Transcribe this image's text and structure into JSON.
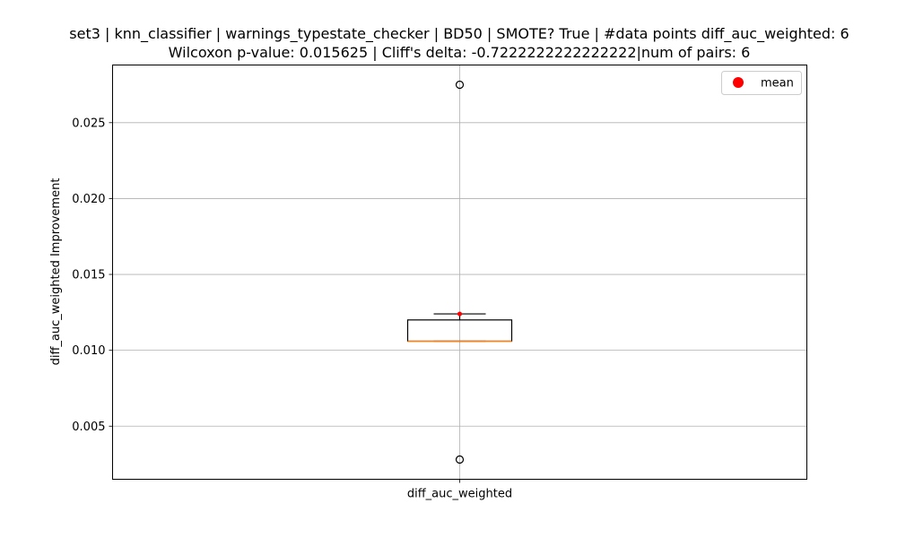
{
  "chart_data": {
    "type": "box",
    "title_line1": "set3 | knn_classifier | warnings_typestate_checker | BD50 | SMOTE? True | #data points diff_auc_weighted: 6",
    "title_line2": "Wilcoxon p-value: 0.015625 | Cliff's delta: -0.7222222222222222|num of pairs: 6",
    "xlabel": "",
    "ylabel": "diff_auc_weighted Improvement",
    "categories": [
      "diff_auc_weighted"
    ],
    "ylim": [
      0.0015,
      0.0288
    ],
    "yticks": [
      0.005,
      0.01,
      0.015,
      0.02,
      0.025
    ],
    "ytick_labels": [
      "0.005",
      "0.010",
      "0.015",
      "0.020",
      "0.025"
    ],
    "grid": true,
    "legend": {
      "placement": "top-right",
      "entries": [
        "mean"
      ]
    },
    "box": {
      "q1": 0.0106,
      "median": 0.0106,
      "q3": 0.012,
      "whisker_low": 0.0106,
      "whisker_high": 0.0124,
      "mean": 0.0124,
      "outliers": [
        0.0275,
        0.0028
      ]
    },
    "colors": {
      "box": "#000000",
      "median": "#ff7f0e",
      "mean": "#ff0000",
      "grid": "#b0b0b0",
      "outlier_edge": "#000000"
    }
  }
}
